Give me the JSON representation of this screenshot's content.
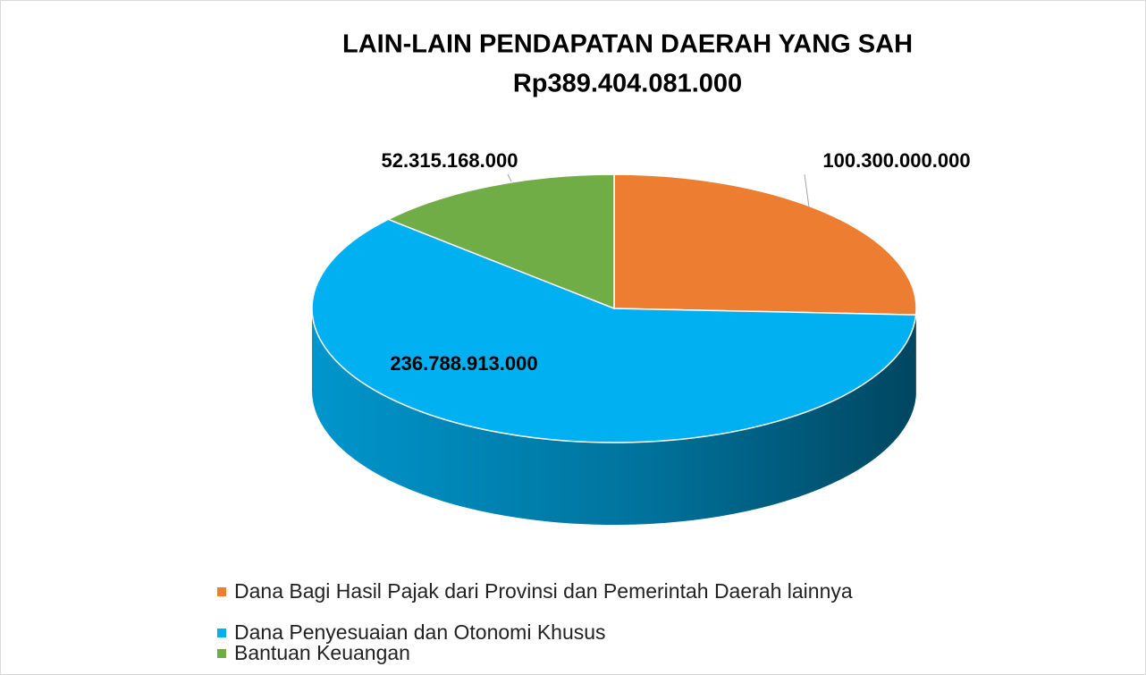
{
  "chart_data": {
    "type": "pie3d",
    "title": "LAIN-LAIN PENDAPATAN DAERAH YANG SAH",
    "subtitle": "Rp389.404.081.000",
    "series": [
      {
        "name": "Dana Bagi Hasil Pajak dari Provinsi dan Pemerintah Daerah lainnya",
        "color": "#ed7d31"
      },
      {
        "name": "Dana Penyesuaian dan Otonomi Khusus",
        "color": "#00b0f0"
      },
      {
        "name": "Bantuan Keuangan",
        "color": "#70ad47"
      }
    ],
    "values": [
      100300000000,
      236788913000,
      52315168000
    ],
    "value_labels": [
      "100.300.000.000",
      "236.788.913.000",
      "52.315.168.000"
    ],
    "legend": "bottom"
  }
}
